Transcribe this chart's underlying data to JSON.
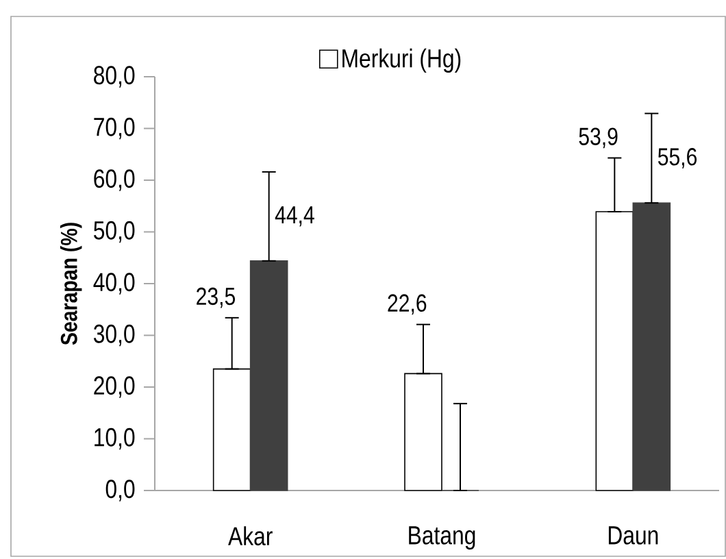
{
  "chart_data": {
    "type": "bar",
    "categories": [
      "Akar",
      "Batang",
      "Daun"
    ],
    "ylabel": "Searapan  (%)",
    "ylim": [
      0,
      80
    ],
    "yticks": [
      {
        "value": 0,
        "label": "0,0"
      },
      {
        "value": 10,
        "label": "10,0"
      },
      {
        "value": 20,
        "label": "20,0"
      },
      {
        "value": 30,
        "label": "30,0"
      },
      {
        "value": 40,
        "label": "40,0"
      },
      {
        "value": 50,
        "label": "50,0"
      },
      {
        "value": 60,
        "label": "60,0"
      },
      {
        "value": 70,
        "label": "70,0"
      },
      {
        "value": 80,
        "label": "80,0"
      }
    ],
    "legend": "top",
    "grid": false,
    "series": [
      {
        "name": "Merkuri (Hg)",
        "color": "#ffffff",
        "values": [
          23.5,
          22.6,
          53.9
        ],
        "errors": [
          [
            23.5,
            33.4
          ],
          [
            22.6,
            32.1
          ],
          [
            53.9,
            64.3
          ]
        ],
        "value_labels": [
          "23,5",
          "22,6",
          "53,9"
        ]
      },
      {
        "color": "#404040",
        "values": [
          44.4,
          0,
          55.6
        ],
        "errors": [
          [
            44.4,
            61.6
          ],
          [
            0,
            16.8
          ],
          [
            55.6,
            72.9
          ]
        ],
        "value_labels": [
          "44,4",
          null,
          "55,6"
        ]
      }
    ]
  }
}
